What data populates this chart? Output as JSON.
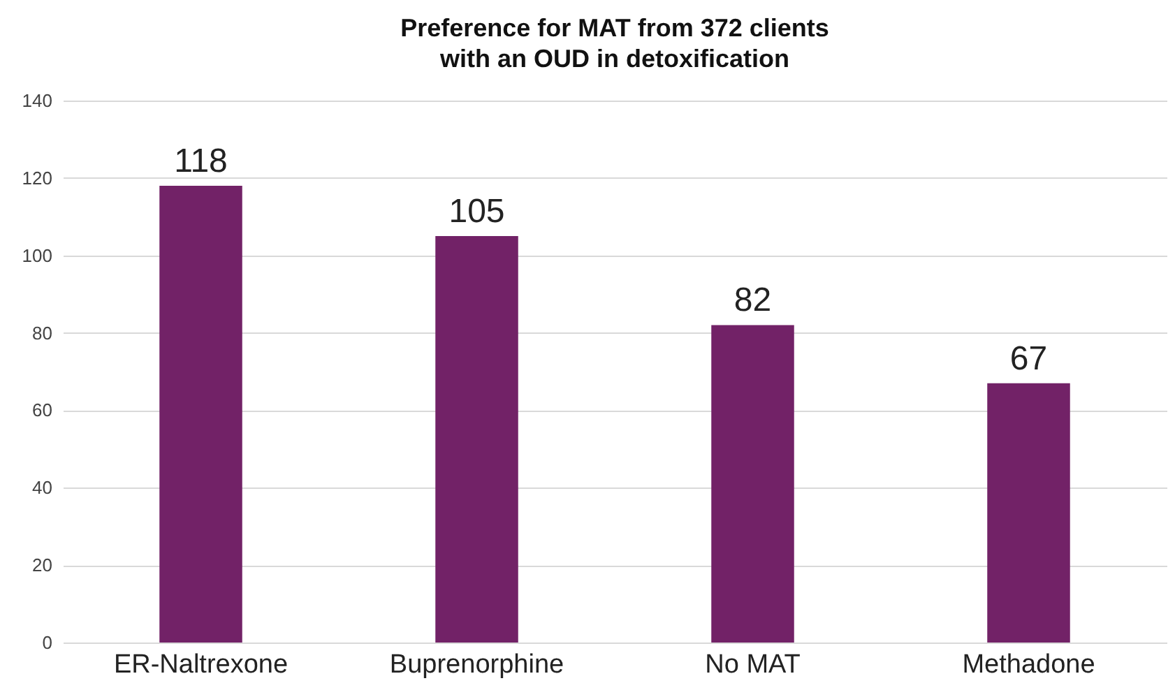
{
  "chart_data": {
    "type": "bar",
    "title": "Preference for MAT from 372 clients\nwith an OUD in detoxification",
    "categories": [
      "ER-Naltrexone",
      "Buprenorphine",
      "No MAT",
      "Methadone"
    ],
    "values": [
      118,
      105,
      82,
      67
    ],
    "color": "#722267",
    "ylim": [
      0,
      140
    ],
    "yticks": [
      0,
      20,
      40,
      60,
      80,
      100,
      120,
      140
    ],
    "grid": "y",
    "data_labels": true
  }
}
